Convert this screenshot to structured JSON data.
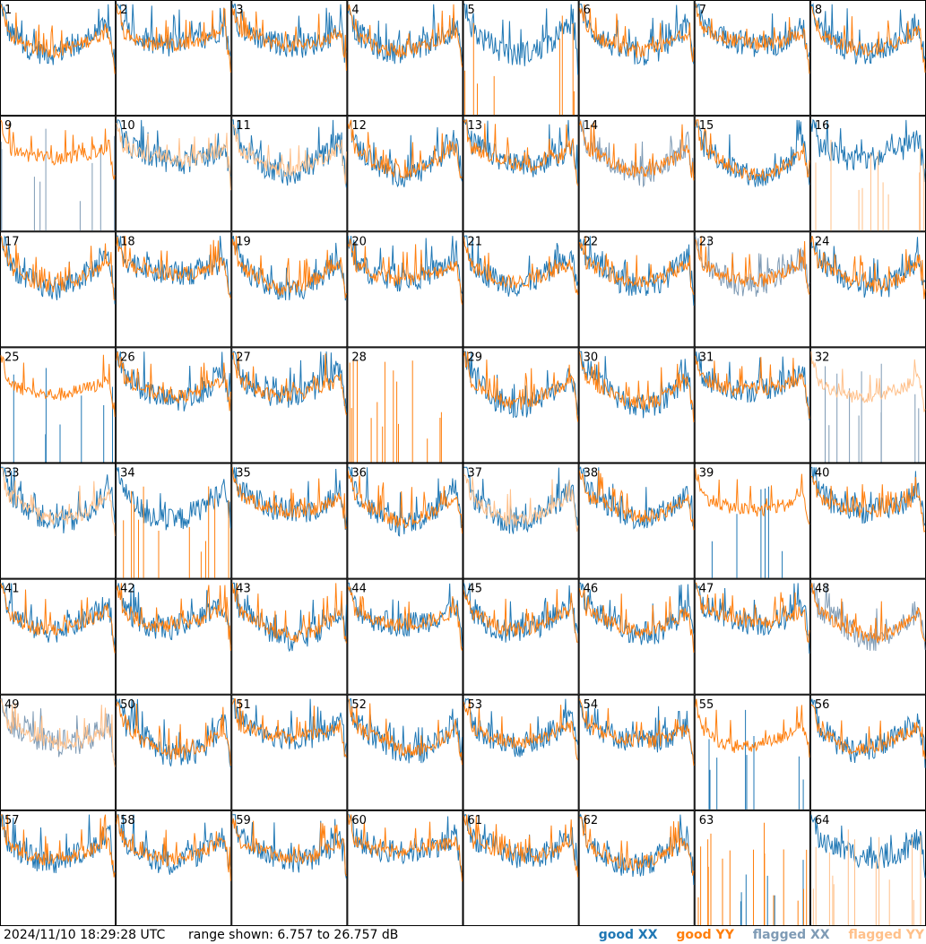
{
  "footer": {
    "timestamp": "2024/11/10 18:29:28 UTC",
    "range": "range shown: 6.757 to 26.757 dB"
  },
  "legend": {
    "good_xx": "good XX",
    "good_yy": "good YY",
    "flagged_xx": "flagged XX",
    "flagged_yy": "flagged YY"
  },
  "colors": {
    "good_xx": "#1f77b4",
    "good_yy": "#ff7f0e",
    "flagged_xx": "#7f9bb5",
    "flagged_yy": "#ffc08a"
  },
  "chart_data": {
    "type": "line",
    "ylim": [
      6.757,
      26.757
    ],
    "unit": "dB",
    "grid": {
      "rows": 8,
      "cols": 8
    },
    "panels": [
      {
        "label": "1",
        "xx": "good",
        "yy": "good"
      },
      {
        "label": "2",
        "xx": "good",
        "yy": "good"
      },
      {
        "label": "3",
        "xx": "good",
        "yy": "good"
      },
      {
        "label": "4",
        "xx": "good",
        "yy": "good"
      },
      {
        "label": "5",
        "xx": "good",
        "yy": "spikes"
      },
      {
        "label": "6",
        "xx": "good",
        "yy": "good"
      },
      {
        "label": "7",
        "xx": "good",
        "yy": "good"
      },
      {
        "label": "8",
        "xx": "good",
        "yy": "good"
      },
      {
        "label": "9",
        "xx": "flag_spikes",
        "yy": "good"
      },
      {
        "label": "10",
        "xx": "good",
        "yy": "flagged"
      },
      {
        "label": "11",
        "xx": "good",
        "yy": "flagged"
      },
      {
        "label": "12",
        "xx": "good",
        "yy": "good"
      },
      {
        "label": "13",
        "xx": "good",
        "yy": "good"
      },
      {
        "label": "14",
        "xx": "flagged",
        "yy": "good"
      },
      {
        "label": "15",
        "xx": "good",
        "yy": "good"
      },
      {
        "label": "16",
        "xx": "good",
        "yy": "flag_spikes"
      },
      {
        "label": "17",
        "xx": "good",
        "yy": "good"
      },
      {
        "label": "18",
        "xx": "good",
        "yy": "good"
      },
      {
        "label": "19",
        "xx": "good",
        "yy": "good"
      },
      {
        "label": "20",
        "xx": "good",
        "yy": "good"
      },
      {
        "label": "21",
        "xx": "good",
        "yy": "good"
      },
      {
        "label": "22",
        "xx": "good",
        "yy": "good"
      },
      {
        "label": "23",
        "xx": "flagged",
        "yy": "good"
      },
      {
        "label": "24",
        "xx": "good",
        "yy": "good"
      },
      {
        "label": "25",
        "xx": "spikes",
        "yy": "good"
      },
      {
        "label": "26",
        "xx": "good",
        "yy": "good"
      },
      {
        "label": "27",
        "xx": "good",
        "yy": "good"
      },
      {
        "label": "28",
        "xx": "none",
        "yy": "spikes"
      },
      {
        "label": "29",
        "xx": "good",
        "yy": "good"
      },
      {
        "label": "30",
        "xx": "good",
        "yy": "good"
      },
      {
        "label": "31",
        "xx": "good",
        "yy": "good"
      },
      {
        "label": "32",
        "xx": "flag_spikes",
        "yy": "flagged"
      },
      {
        "label": "33",
        "xx": "good",
        "yy": "flagged"
      },
      {
        "label": "34",
        "xx": "good",
        "yy": "spikes"
      },
      {
        "label": "35",
        "xx": "good",
        "yy": "good"
      },
      {
        "label": "36",
        "xx": "good",
        "yy": "good"
      },
      {
        "label": "37",
        "xx": "good",
        "yy": "flagged"
      },
      {
        "label": "38",
        "xx": "good",
        "yy": "good"
      },
      {
        "label": "39",
        "xx": "spikes",
        "yy": "good"
      },
      {
        "label": "40",
        "xx": "good",
        "yy": "good"
      },
      {
        "label": "41",
        "xx": "good",
        "yy": "good"
      },
      {
        "label": "42",
        "xx": "good",
        "yy": "good"
      },
      {
        "label": "43",
        "xx": "good",
        "yy": "good"
      },
      {
        "label": "44",
        "xx": "good",
        "yy": "good"
      },
      {
        "label": "45",
        "xx": "good",
        "yy": "good"
      },
      {
        "label": "46",
        "xx": "good",
        "yy": "good"
      },
      {
        "label": "47",
        "xx": "good",
        "yy": "good"
      },
      {
        "label": "48",
        "xx": "flagged",
        "yy": "good"
      },
      {
        "label": "49",
        "xx": "flagged",
        "yy": "flagged"
      },
      {
        "label": "50",
        "xx": "good",
        "yy": "good"
      },
      {
        "label": "51",
        "xx": "good",
        "yy": "good"
      },
      {
        "label": "52",
        "xx": "good",
        "yy": "good"
      },
      {
        "label": "53",
        "xx": "good",
        "yy": "good"
      },
      {
        "label": "54",
        "xx": "good",
        "yy": "good"
      },
      {
        "label": "55",
        "xx": "spikes",
        "yy": "good"
      },
      {
        "label": "56",
        "xx": "good",
        "yy": "good"
      },
      {
        "label": "57",
        "xx": "good",
        "yy": "good"
      },
      {
        "label": "58",
        "xx": "good",
        "yy": "good"
      },
      {
        "label": "59",
        "xx": "good",
        "yy": "good"
      },
      {
        "label": "60",
        "xx": "good",
        "yy": "good"
      },
      {
        "label": "61",
        "xx": "good",
        "yy": "good"
      },
      {
        "label": "62",
        "xx": "good",
        "yy": "good"
      },
      {
        "label": "63",
        "xx": "spikes",
        "yy": "spikes"
      },
      {
        "label": "64",
        "xx": "good",
        "yy": "flag_spikes"
      }
    ]
  }
}
